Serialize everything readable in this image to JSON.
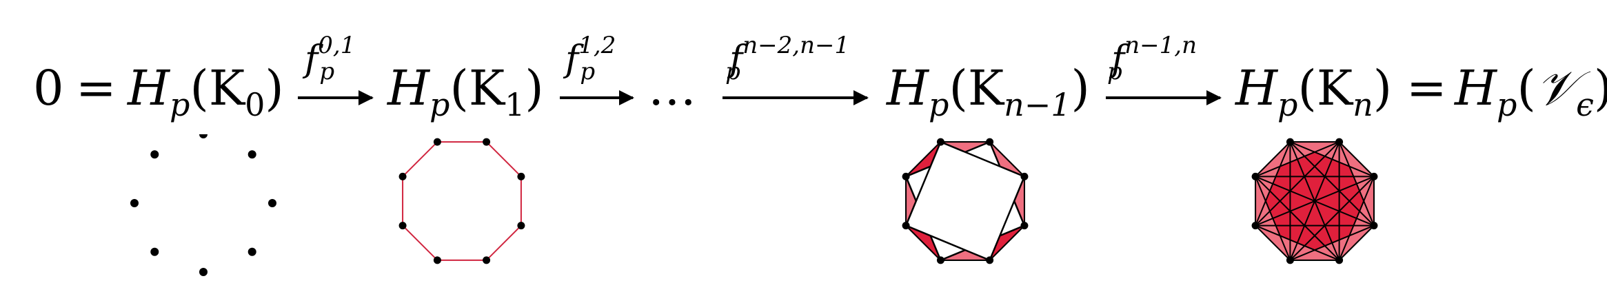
{
  "equation": {
    "zero": "0",
    "equals": "=",
    "H": "H",
    "p": "p",
    "lparen": "(",
    "rparen": ")",
    "K": "K",
    "sub_0": "0",
    "sub_1": "1",
    "sub_n_minus_1": "n−1",
    "sub_n": "n",
    "dots": "…",
    "V": "𝒱",
    "epsilon": "ϵ"
  },
  "arrows": [
    {
      "f": "f",
      "sub": "p",
      "sup": "0,1"
    },
    {
      "f": "f",
      "sub": "p",
      "sup": "1,2"
    },
    {
      "f": "f",
      "sub": "p",
      "sup": "n−2,n−1"
    },
    {
      "f": "f",
      "sub": "p",
      "sup": "n−1,n"
    }
  ],
  "colors": {
    "edge": "#d0243e",
    "fill_light": "#ef6f80",
    "fill_dark": "#e0203c",
    "vertex": "#000000"
  }
}
